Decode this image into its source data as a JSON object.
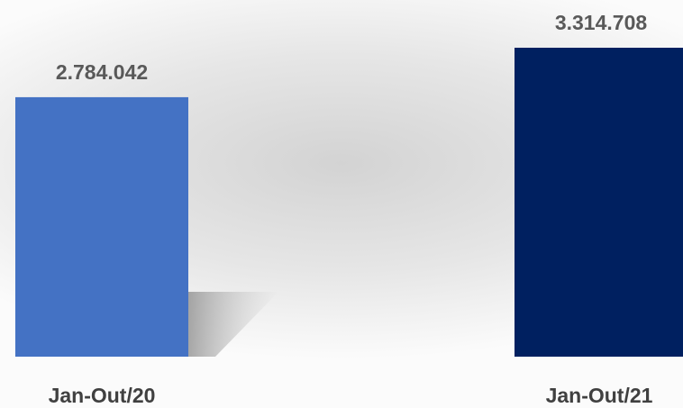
{
  "chart_data": {
    "type": "bar",
    "title": "",
    "xlabel": "",
    "ylabel": "",
    "categories": [
      "Jan-Out/20",
      "Jan-Out/21"
    ],
    "values": [
      2784042,
      3314708
    ],
    "value_labels": [
      "2.784.042",
      "3.314.708"
    ],
    "colors": [
      "#4472C4",
      "#002060"
    ],
    "ylim": [
      0,
      3600000
    ],
    "grid": false,
    "legend": "none"
  }
}
